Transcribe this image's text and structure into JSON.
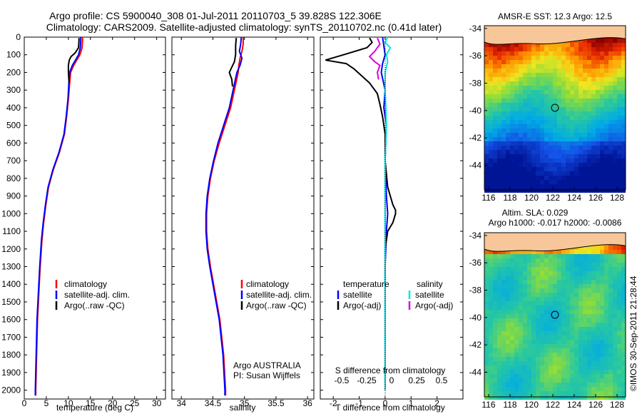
{
  "header": {
    "line1": "Argo profile: CS 5900040_308 01-Jul-2011 20110703_5 39.828S 122.306E",
    "line2": "Climatology: CARS2009. Satellite-adjusted climatology: synTS_20110702.nc (0.41d later)"
  },
  "colors": {
    "climatology": "#ff0000",
    "satellite": "#0000ff",
    "argo": "#000000",
    "satellite_salinity": "#00e5e5",
    "argo_salinity": "#e000e0",
    "land": "#f7c79a"
  },
  "depth_axis": {
    "ticks": [
      0,
      100,
      200,
      300,
      400,
      500,
      600,
      700,
      800,
      900,
      1000,
      1100,
      1200,
      1300,
      1400,
      1500,
      1600,
      1700,
      1800,
      1900,
      2000
    ]
  },
  "chart_data": [
    {
      "type": "line",
      "name": "temperature-profile",
      "xlabel": "temperature (deg C)",
      "ylabel": "depth",
      "xlim": [
        0,
        32
      ],
      "ylim": [
        2050,
        0
      ],
      "xticks": [
        0,
        5,
        10,
        15,
        20,
        25,
        30
      ],
      "legend": [
        "climatology",
        "satellite-adj. clim.",
        "Argo(..raw -QC)"
      ],
      "legend_position": "lower-center",
      "series": [
        {
          "name": "climatology",
          "color": "red",
          "depth": [
            0,
            20,
            60,
            100,
            130,
            160,
            200,
            260,
            350,
            450,
            550,
            650,
            750,
            850,
            950,
            1050,
            1150,
            1300,
            1450,
            1600,
            1800,
            2000,
            2030
          ],
          "value": [
            13.2,
            13.2,
            13.1,
            12.6,
            11.9,
            11.2,
            10.5,
            10.3,
            10.0,
            9.6,
            9.1,
            8.0,
            6.6,
            5.5,
            4.9,
            4.4,
            4.0,
            3.6,
            3.3,
            3.0,
            2.8,
            2.6,
            2.6
          ]
        },
        {
          "name": "satellite-adj. clim.",
          "color": "blue",
          "depth": [
            0,
            20,
            60,
            100,
            130,
            160,
            200,
            260,
            350,
            450,
            550,
            650,
            750,
            850,
            950,
            1050,
            1150,
            1300,
            1450,
            1600,
            1800,
            2000,
            2030
          ],
          "value": [
            12.8,
            12.8,
            12.7,
            12.3,
            11.6,
            10.9,
            10.3,
            10.1,
            9.9,
            9.5,
            9.0,
            7.9,
            6.5,
            5.4,
            4.8,
            4.3,
            3.9,
            3.5,
            3.2,
            2.9,
            2.7,
            2.5,
            2.5
          ]
        },
        {
          "name": "Argo(..raw -QC)",
          "color": "black",
          "depth": [
            5,
            20,
            60,
            90,
            110,
            130,
            160,
            200,
            240,
            260
          ],
          "value": [
            12.4,
            12.4,
            12.3,
            11.5,
            10.6,
            10.2,
            10.0,
            10.0,
            10.1,
            10.2
          ]
        }
      ]
    },
    {
      "type": "line",
      "name": "salinity-profile",
      "xlabel": "salinity",
      "ylabel": "depth",
      "xlim": [
        33.85,
        36.1
      ],
      "ylim": [
        2050,
        0
      ],
      "xticks": [
        34,
        34.5,
        35,
        35.5,
        36
      ],
      "legend": [
        "climatology",
        "satellite-adj. clim.",
        "Argo(..raw -QC)"
      ],
      "legend_position": "lower-right",
      "annotations": [
        "Argo AUSTRALIA",
        "PI: Susan Wijffels"
      ],
      "series": [
        {
          "name": "climatology",
          "color": "red",
          "depth": [
            0,
            40,
            80,
            120,
            160,
            200,
            300,
            400,
            500,
            600,
            700,
            800,
            900,
            1000,
            1100,
            1200,
            1300,
            1400,
            1500,
            1600,
            1800,
            2000,
            2030
          ],
          "value": [
            34.98,
            34.98,
            34.96,
            34.93,
            34.91,
            34.9,
            34.84,
            34.78,
            34.69,
            34.6,
            34.52,
            34.46,
            34.42,
            34.4,
            34.4,
            34.42,
            34.46,
            34.51,
            34.56,
            34.61,
            34.67,
            34.7,
            34.7
          ]
        },
        {
          "name": "satellite-adj. clim.",
          "color": "blue",
          "depth": [
            0,
            40,
            80,
            120,
            160,
            200,
            300,
            400,
            500,
            600,
            700,
            800,
            900,
            1000,
            1100,
            1200,
            1300,
            1400,
            1500,
            1600,
            1800,
            2000,
            2030
          ],
          "value": [
            34.95,
            34.94,
            34.92,
            34.96,
            34.93,
            34.88,
            34.82,
            34.76,
            34.67,
            34.58,
            34.51,
            34.45,
            34.41,
            34.39,
            34.39,
            34.41,
            34.45,
            34.5,
            34.55,
            34.6,
            34.66,
            34.69,
            34.69
          ]
        },
        {
          "name": "Argo(..raw -QC)",
          "color": "black",
          "depth": [
            5,
            50,
            100,
            140,
            170,
            200,
            240,
            280
          ],
          "value": [
            34.87,
            34.86,
            34.86,
            34.84,
            34.8,
            34.76,
            34.8,
            34.81
          ]
        }
      ]
    },
    {
      "type": "line",
      "name": "difference-from-climatology",
      "xlabel": "T difference from climatology",
      "xlabel_top": "S difference from climatology",
      "ylabel": "depth",
      "xlim": [
        -2.5,
        3.0
      ],
      "ylim": [
        2050,
        0
      ],
      "xticks": [
        -2,
        -1,
        0,
        1,
        2
      ],
      "xticks_top": [
        "-0.5",
        "-0.25",
        "0",
        "0.25",
        "0.5"
      ],
      "legend_headers": [
        "temperature",
        "salinity"
      ],
      "legend": [
        "satellite",
        "Argo(-adj)",
        "satellite",
        "Argo(-adj)"
      ],
      "legend_position": "lower-center",
      "series": [
        {
          "name": "temperature satellite",
          "color": "blue",
          "depth": [
            0,
            50,
            100,
            150,
            200,
            300,
            400,
            500,
            700,
            900,
            1000,
            1100,
            1300,
            1500,
            1700,
            2000
          ],
          "value": [
            -0.1,
            -0.05,
            0.0,
            -0.1,
            -0.15,
            0.0,
            -0.05,
            0.05,
            0.0,
            0.05,
            0.1,
            0.05,
            0.0,
            0.0,
            0.0,
            0.0
          ]
        },
        {
          "name": "temperature Argo(-adj)",
          "color": "black",
          "depth": [
            5,
            30,
            60,
            100,
            130,
            150,
            180,
            220,
            260,
            320,
            380,
            450,
            550,
            700,
            850,
            950,
            980,
            1000,
            1050,
            1100,
            1200,
            1400
          ],
          "value": [
            -0.6,
            -0.5,
            -0.7,
            -1.6,
            -2.3,
            -1.5,
            -1.2,
            -0.9,
            -0.6,
            -0.3,
            -0.2,
            -0.1,
            0.0,
            0.0,
            0.1,
            0.3,
            0.4,
            0.4,
            0.3,
            0.1,
            0.0,
            0.0
          ]
        },
        {
          "name": "salinity satellite",
          "color": "cyan",
          "depth": [
            0,
            30,
            60,
            100,
            140,
            200,
            300,
            500,
            700,
            900,
            1100,
            1300,
            1500,
            1700,
            2000
          ],
          "value": [
            0.1,
            0.0,
            0.2,
            0.05,
            0.1,
            0.0,
            0.0,
            0.05,
            0.0,
            0.0,
            0.0,
            0.0,
            0.0,
            0.0,
            0.0
          ]
        },
        {
          "name": "salinity Argo(-adj)",
          "color": "magenta",
          "depth": [
            5,
            40,
            80,
            110,
            140,
            160,
            200,
            240
          ],
          "value": [
            -0.3,
            -0.2,
            -0.4,
            -0.6,
            -0.4,
            -0.2,
            -0.3,
            -0.25
          ]
        }
      ]
    },
    {
      "type": "heatmap",
      "name": "amsr-e-sst-map",
      "title": "AMSR-E SST: 12.3  Argo: 12.5",
      "xlim": [
        115.6,
        128.8
      ],
      "ylim": [
        -45.8,
        -33.8
      ],
      "xticks": [
        116,
        118,
        120,
        122,
        124,
        126,
        128
      ],
      "yticks": [
        -34,
        -36,
        -38,
        -40,
        -42,
        -44
      ],
      "marker": {
        "lon": 122.306,
        "lat": -39.828
      }
    },
    {
      "type": "heatmap",
      "name": "altimetry-sla-map",
      "title_line1": "Altim. SLA: 0.029",
      "title_line2": "Argo h1000: -0.017  h2000: -0.0086",
      "xlim": [
        115.6,
        128.8
      ],
      "ylim": [
        -45.8,
        -33.8
      ],
      "xticks": [
        116,
        118,
        120,
        122,
        124,
        126,
        128
      ],
      "yticks": [
        -34,
        -36,
        -38,
        -40,
        -42,
        -44
      ],
      "marker": {
        "lon": 122.306,
        "lat": -39.828
      }
    }
  ],
  "credit": "©IMOS 30-Sep-2011 21:28:44"
}
